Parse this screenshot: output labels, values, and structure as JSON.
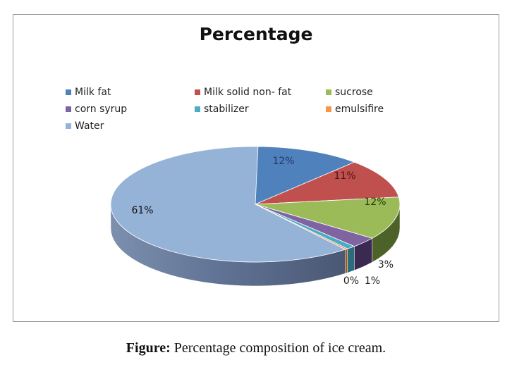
{
  "chart_data": {
    "type": "pie",
    "style": "3d-pie",
    "title": "Percentage",
    "categories": [
      "Milk fat",
      "Milk solid non- fat",
      "sucrose",
      "corn syrup",
      "stabilizer",
      "emulsifire",
      "Water"
    ],
    "values": [
      12,
      11,
      12,
      3,
      1,
      0,
      61
    ],
    "labels": [
      "12%",
      "11%",
      "12%",
      "3%",
      "1%",
      "0%",
      "61%"
    ],
    "colors": [
      "#4F81BD",
      "#C0504D",
      "#9BBB59",
      "#8064A2",
      "#4BACC6",
      "#F79646",
      "#8EA6CE"
    ],
    "legend_position": "top"
  },
  "legend": [
    {
      "label": "Milk fat",
      "color": "#4F81BD"
    },
    {
      "label": "Milk solid non- fat",
      "color": "#C0504D"
    },
    {
      "label": "sucrose",
      "color": "#9BBB59"
    },
    {
      "label": "corn syrup",
      "color": "#8064A2"
    },
    {
      "label": "stabilizer",
      "color": "#4BACC6"
    },
    {
      "label": "emulsifire",
      "color": "#F79646"
    },
    {
      "label": "Water",
      "color": "#95B3D7"
    }
  ],
  "caption": {
    "prefix": "Figure:",
    "text": " Percentage composition of ice cream."
  }
}
